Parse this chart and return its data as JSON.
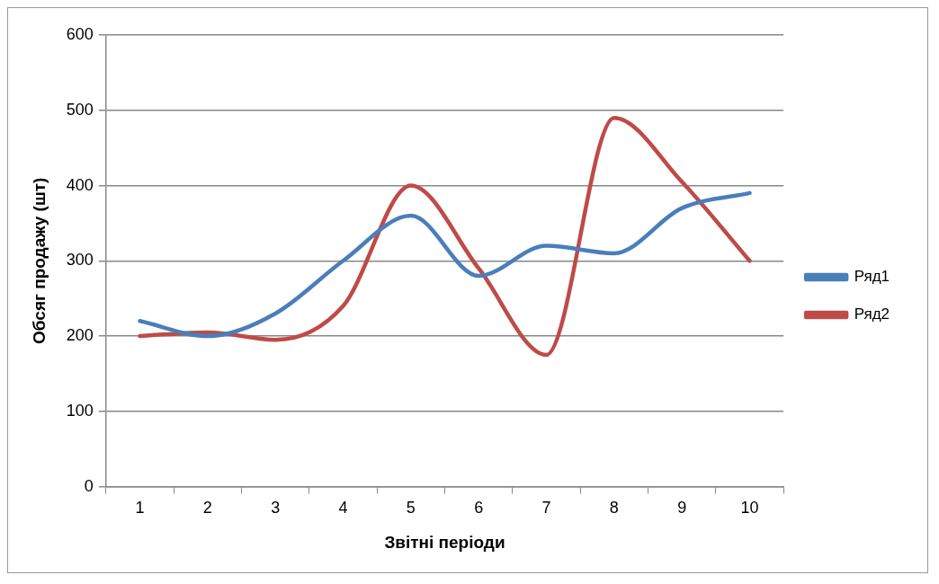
{
  "chart_data": {
    "type": "line",
    "xlabel": "Звітні періоди",
    "ylabel": "Обсяг продажу (шт)",
    "categories": [
      "1",
      "2",
      "3",
      "4",
      "5",
      "6",
      "7",
      "8",
      "9",
      "10"
    ],
    "series": [
      {
        "name": "Ряд1",
        "color": "#4a7ebb",
        "values": [
          220,
          200,
          230,
          300,
          360,
          280,
          320,
          310,
          370,
          390
        ]
      },
      {
        "name": "Ряд2",
        "color": "#be4b48",
        "values": [
          200,
          205,
          195,
          240,
          400,
          290,
          175,
          490,
          405,
          300
        ]
      }
    ],
    "ylim": [
      0,
      600
    ],
    "yticks": [
      0,
      100,
      200,
      300,
      400,
      500,
      600
    ],
    "grid": "y",
    "legend": "right",
    "marker": "none",
    "line_style": "solid"
  }
}
